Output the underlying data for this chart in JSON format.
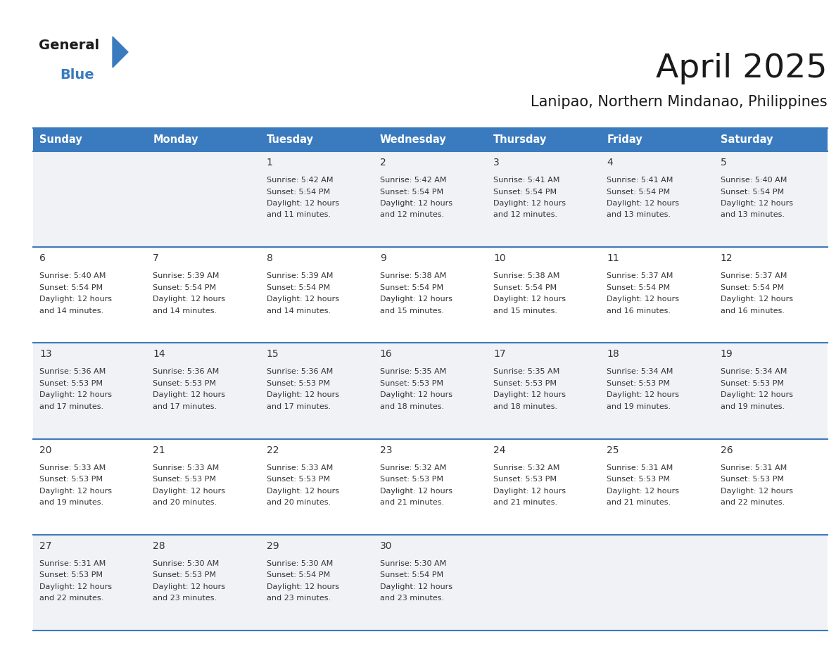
{
  "title": "April 2025",
  "subtitle": "Lanipao, Northern Mindanao, Philippines",
  "header_color": "#3a7bbf",
  "header_text_color": "#ffffff",
  "border_color": "#3a7bbf",
  "title_color": "#1a1a1a",
  "subtitle_color": "#1a1a1a",
  "row_bg_even": "#f0f2f5",
  "row_bg_odd": "#ffffff",
  "text_color": "#333333",
  "day_names": [
    "Sunday",
    "Monday",
    "Tuesday",
    "Wednesday",
    "Thursday",
    "Friday",
    "Saturday"
  ],
  "days": [
    {
      "date": 1,
      "col": 2,
      "row": 0,
      "sunrise": "5:42 AM",
      "sunset": "5:54 PM",
      "daylight_hours": 12,
      "daylight_minutes": 11
    },
    {
      "date": 2,
      "col": 3,
      "row": 0,
      "sunrise": "5:42 AM",
      "sunset": "5:54 PM",
      "daylight_hours": 12,
      "daylight_minutes": 12
    },
    {
      "date": 3,
      "col": 4,
      "row": 0,
      "sunrise": "5:41 AM",
      "sunset": "5:54 PM",
      "daylight_hours": 12,
      "daylight_minutes": 12
    },
    {
      "date": 4,
      "col": 5,
      "row": 0,
      "sunrise": "5:41 AM",
      "sunset": "5:54 PM",
      "daylight_hours": 12,
      "daylight_minutes": 13
    },
    {
      "date": 5,
      "col": 6,
      "row": 0,
      "sunrise": "5:40 AM",
      "sunset": "5:54 PM",
      "daylight_hours": 12,
      "daylight_minutes": 13
    },
    {
      "date": 6,
      "col": 0,
      "row": 1,
      "sunrise": "5:40 AM",
      "sunset": "5:54 PM",
      "daylight_hours": 12,
      "daylight_minutes": 14
    },
    {
      "date": 7,
      "col": 1,
      "row": 1,
      "sunrise": "5:39 AM",
      "sunset": "5:54 PM",
      "daylight_hours": 12,
      "daylight_minutes": 14
    },
    {
      "date": 8,
      "col": 2,
      "row": 1,
      "sunrise": "5:39 AM",
      "sunset": "5:54 PM",
      "daylight_hours": 12,
      "daylight_minutes": 14
    },
    {
      "date": 9,
      "col": 3,
      "row": 1,
      "sunrise": "5:38 AM",
      "sunset": "5:54 PM",
      "daylight_hours": 12,
      "daylight_minutes": 15
    },
    {
      "date": 10,
      "col": 4,
      "row": 1,
      "sunrise": "5:38 AM",
      "sunset": "5:54 PM",
      "daylight_hours": 12,
      "daylight_minutes": 15
    },
    {
      "date": 11,
      "col": 5,
      "row": 1,
      "sunrise": "5:37 AM",
      "sunset": "5:54 PM",
      "daylight_hours": 12,
      "daylight_minutes": 16
    },
    {
      "date": 12,
      "col": 6,
      "row": 1,
      "sunrise": "5:37 AM",
      "sunset": "5:54 PM",
      "daylight_hours": 12,
      "daylight_minutes": 16
    },
    {
      "date": 13,
      "col": 0,
      "row": 2,
      "sunrise": "5:36 AM",
      "sunset": "5:53 PM",
      "daylight_hours": 12,
      "daylight_minutes": 17
    },
    {
      "date": 14,
      "col": 1,
      "row": 2,
      "sunrise": "5:36 AM",
      "sunset": "5:53 PM",
      "daylight_hours": 12,
      "daylight_minutes": 17
    },
    {
      "date": 15,
      "col": 2,
      "row": 2,
      "sunrise": "5:36 AM",
      "sunset": "5:53 PM",
      "daylight_hours": 12,
      "daylight_minutes": 17
    },
    {
      "date": 16,
      "col": 3,
      "row": 2,
      "sunrise": "5:35 AM",
      "sunset": "5:53 PM",
      "daylight_hours": 12,
      "daylight_minutes": 18
    },
    {
      "date": 17,
      "col": 4,
      "row": 2,
      "sunrise": "5:35 AM",
      "sunset": "5:53 PM",
      "daylight_hours": 12,
      "daylight_minutes": 18
    },
    {
      "date": 18,
      "col": 5,
      "row": 2,
      "sunrise": "5:34 AM",
      "sunset": "5:53 PM",
      "daylight_hours": 12,
      "daylight_minutes": 19
    },
    {
      "date": 19,
      "col": 6,
      "row": 2,
      "sunrise": "5:34 AM",
      "sunset": "5:53 PM",
      "daylight_hours": 12,
      "daylight_minutes": 19
    },
    {
      "date": 20,
      "col": 0,
      "row": 3,
      "sunrise": "5:33 AM",
      "sunset": "5:53 PM",
      "daylight_hours": 12,
      "daylight_minutes": 19
    },
    {
      "date": 21,
      "col": 1,
      "row": 3,
      "sunrise": "5:33 AM",
      "sunset": "5:53 PM",
      "daylight_hours": 12,
      "daylight_minutes": 20
    },
    {
      "date": 22,
      "col": 2,
      "row": 3,
      "sunrise": "5:33 AM",
      "sunset": "5:53 PM",
      "daylight_hours": 12,
      "daylight_minutes": 20
    },
    {
      "date": 23,
      "col": 3,
      "row": 3,
      "sunrise": "5:32 AM",
      "sunset": "5:53 PM",
      "daylight_hours": 12,
      "daylight_minutes": 21
    },
    {
      "date": 24,
      "col": 4,
      "row": 3,
      "sunrise": "5:32 AM",
      "sunset": "5:53 PM",
      "daylight_hours": 12,
      "daylight_minutes": 21
    },
    {
      "date": 25,
      "col": 5,
      "row": 3,
      "sunrise": "5:31 AM",
      "sunset": "5:53 PM",
      "daylight_hours": 12,
      "daylight_minutes": 21
    },
    {
      "date": 26,
      "col": 6,
      "row": 3,
      "sunrise": "5:31 AM",
      "sunset": "5:53 PM",
      "daylight_hours": 12,
      "daylight_minutes": 22
    },
    {
      "date": 27,
      "col": 0,
      "row": 4,
      "sunrise": "5:31 AM",
      "sunset": "5:53 PM",
      "daylight_hours": 12,
      "daylight_minutes": 22
    },
    {
      "date": 28,
      "col": 1,
      "row": 4,
      "sunrise": "5:30 AM",
      "sunset": "5:53 PM",
      "daylight_hours": 12,
      "daylight_minutes": 23
    },
    {
      "date": 29,
      "col": 2,
      "row": 4,
      "sunrise": "5:30 AM",
      "sunset": "5:54 PM",
      "daylight_hours": 12,
      "daylight_minutes": 23
    },
    {
      "date": 30,
      "col": 3,
      "row": 4,
      "sunrise": "5:30 AM",
      "sunset": "5:54 PM",
      "daylight_hours": 12,
      "daylight_minutes": 23
    }
  ],
  "num_rows": 5,
  "num_cols": 7,
  "logo_text_general": "General",
  "logo_text_blue": "Blue",
  "logo_color_general": "#1a1a1a",
  "logo_color_blue": "#3a7bbf",
  "logo_triangle_color": "#3a7bbf"
}
